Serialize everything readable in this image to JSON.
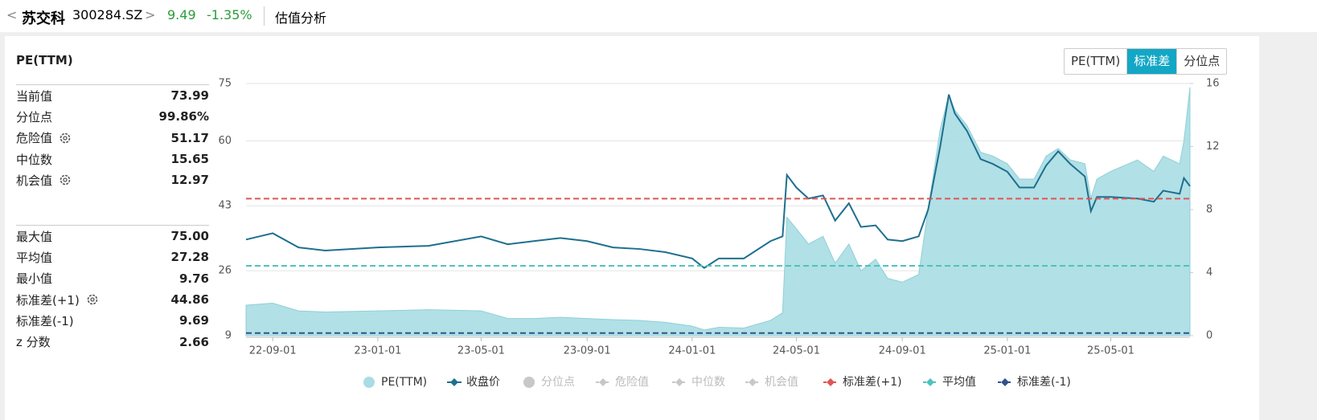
{
  "header": {
    "stock_name": "苏交科",
    "code": "300284.SZ",
    "price": "9.49",
    "change": "-1.35%",
    "section": "估值分析"
  },
  "tabs": [
    {
      "label": "PE(TTM)",
      "active": false
    },
    {
      "label": "标准差",
      "active": true
    },
    {
      "label": "分位点",
      "active": false
    }
  ],
  "panel_title": "PE(TTM)",
  "stats": [
    [
      {
        "label": "当前值",
        "value": "73.99",
        "gear": false
      },
      {
        "label": "分位点",
        "value": "99.86%",
        "gear": false
      },
      {
        "label": "危险值",
        "value": "51.17",
        "gear": true
      },
      {
        "label": "中位数",
        "value": "15.65",
        "gear": false
      },
      {
        "label": "机会值",
        "value": "12.97",
        "gear": true
      }
    ],
    [
      {
        "label": "最大值",
        "value": "75.00",
        "gear": false
      },
      {
        "label": "平均值",
        "value": "27.28",
        "gear": false
      },
      {
        "label": "最小值",
        "value": "9.76",
        "gear": false
      },
      {
        "label": "标准差(+1)",
        "value": "44.86",
        "gear": true
      },
      {
        "label": "标准差(-1)",
        "value": "9.69",
        "gear": false
      },
      {
        "label": "z 分数",
        "value": "2.66",
        "gear": false
      }
    ]
  ],
  "chart_data": {
    "type": "area",
    "x": [
      "22-08-01",
      "22-09-01",
      "22-10-01",
      "22-11-01",
      "23-01-01",
      "23-03-01",
      "23-05-01",
      "23-06-01",
      "23-07-01",
      "23-08-01",
      "23-09-01",
      "23-10-01",
      "23-11-01",
      "23-12-01",
      "24-01-01",
      "24-01-15",
      "24-02-01",
      "24-03-01",
      "24-04-01",
      "24-04-15",
      "24-04-20",
      "24-05-01",
      "24-05-15",
      "24-06-01",
      "24-06-15",
      "24-07-01",
      "24-07-15",
      "24-08-01",
      "24-08-15",
      "24-09-01",
      "24-09-20",
      "24-10-01",
      "24-10-15",
      "24-10-25",
      "24-11-01",
      "24-11-15",
      "24-12-01",
      "24-12-15",
      "25-01-01",
      "25-01-15",
      "25-02-01",
      "25-02-15",
      "25-03-01",
      "25-03-15",
      "25-04-01",
      "25-04-08",
      "25-04-15",
      "25-05-01",
      "25-06-01",
      "25-06-20",
      "25-07-01",
      "25-07-20",
      "25-07-25",
      "25-08-01"
    ],
    "xlim": [
      "22-08-01",
      "25-08-01"
    ],
    "xticks": [
      "22-09-01",
      "23-01-01",
      "23-05-01",
      "23-09-01",
      "24-01-01",
      "24-05-01",
      "24-09-01",
      "25-01-01",
      "25-05-01"
    ],
    "ylim": [
      9,
      75
    ],
    "yticks": [
      9,
      26,
      43,
      60,
      75
    ],
    "y2lim": [
      0,
      16
    ],
    "y2ticks": [
      0,
      4,
      8,
      12,
      16
    ],
    "grid": true,
    "series": [
      {
        "name": "PE(TTM)",
        "kind": "area",
        "color": "#a9dde3",
        "visible": true,
        "values": [
          17,
          17.5,
          15.5,
          15.2,
          15.5,
          15.8,
          15.5,
          13.5,
          13.5,
          13.8,
          13.5,
          13.2,
          13,
          12.5,
          11.5,
          10.5,
          11.2,
          11,
          13,
          15,
          40,
          37,
          33,
          35,
          28,
          33,
          26,
          29,
          24,
          23,
          25,
          42,
          63,
          72,
          68,
          64,
          57,
          56,
          54,
          50,
          50,
          56,
          58,
          55,
          54,
          45,
          50,
          52,
          55,
          52,
          56,
          54,
          60,
          73.99
        ]
      },
      {
        "name": "收盘价",
        "kind": "line",
        "axis": "y2",
        "color": "#1e6f8f",
        "visible": true,
        "values": [
          6.1,
          6.5,
          5.6,
          5.4,
          5.6,
          5.7,
          6.3,
          5.8,
          6.0,
          6.2,
          6.0,
          5.6,
          5.5,
          5.3,
          4.9,
          4.3,
          4.9,
          4.9,
          6.0,
          6.3,
          10.2,
          9.4,
          8.7,
          8.9,
          7.3,
          8.4,
          6.9,
          7.0,
          6.1,
          6.0,
          6.3,
          8.0,
          12.0,
          15.3,
          14.1,
          13.0,
          11.2,
          10.9,
          10.4,
          9.4,
          9.4,
          10.8,
          11.7,
          10.9,
          10.1,
          7.9,
          8.8,
          8.8,
          8.7,
          8.5,
          9.2,
          9.0,
          10.0,
          9.49
        ]
      },
      {
        "name": "分位点",
        "kind": "none",
        "color": "#c8c8c8",
        "visible": false
      },
      {
        "name": "危险值",
        "kind": "none",
        "color": "#c8c8c8",
        "visible": false
      },
      {
        "name": "中位数",
        "kind": "none",
        "color": "#c8c8c8",
        "visible": false
      },
      {
        "name": "机会值",
        "kind": "none",
        "color": "#c8c8c8",
        "visible": false
      },
      {
        "name": "标准差(+1)",
        "kind": "hline",
        "color": "#e05555",
        "visible": true,
        "value": 44.86
      },
      {
        "name": "平均值",
        "kind": "hline",
        "color": "#4ec3bd",
        "visible": true,
        "value": 27.28
      },
      {
        "name": "标准差(-1)",
        "kind": "hline",
        "color": "#34508a",
        "visible": true,
        "value": 9.69
      }
    ]
  }
}
